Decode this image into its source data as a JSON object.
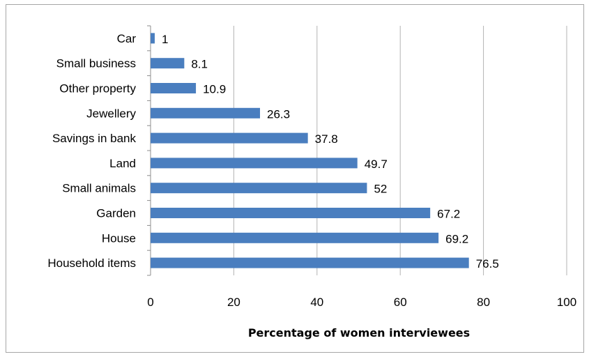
{
  "chart_data": {
    "type": "bar",
    "orientation": "horizontal",
    "categories": [
      "Car",
      "Small business",
      "Other property",
      "Jewellery",
      "Savings in bank",
      "Land",
      "Small animals",
      "Garden",
      "House",
      "Household items"
    ],
    "values": [
      1,
      8.1,
      10.9,
      26.3,
      37.8,
      49.7,
      52,
      67.2,
      69.2,
      76.5
    ],
    "data_labels": [
      "1",
      "8.1",
      "10.9",
      "26.3",
      "37.8",
      "49.7",
      "52",
      "67.2",
      "69.2",
      "76.5"
    ],
    "xlabel": "Percentage of women interviewees",
    "ylabel": "",
    "xlim": [
      0,
      100
    ],
    "x_ticks": [
      "0",
      "20",
      "40",
      "60",
      "80",
      "100"
    ],
    "grid": "vertical",
    "legend": "none",
    "bar_color": "#4a7ebf"
  }
}
